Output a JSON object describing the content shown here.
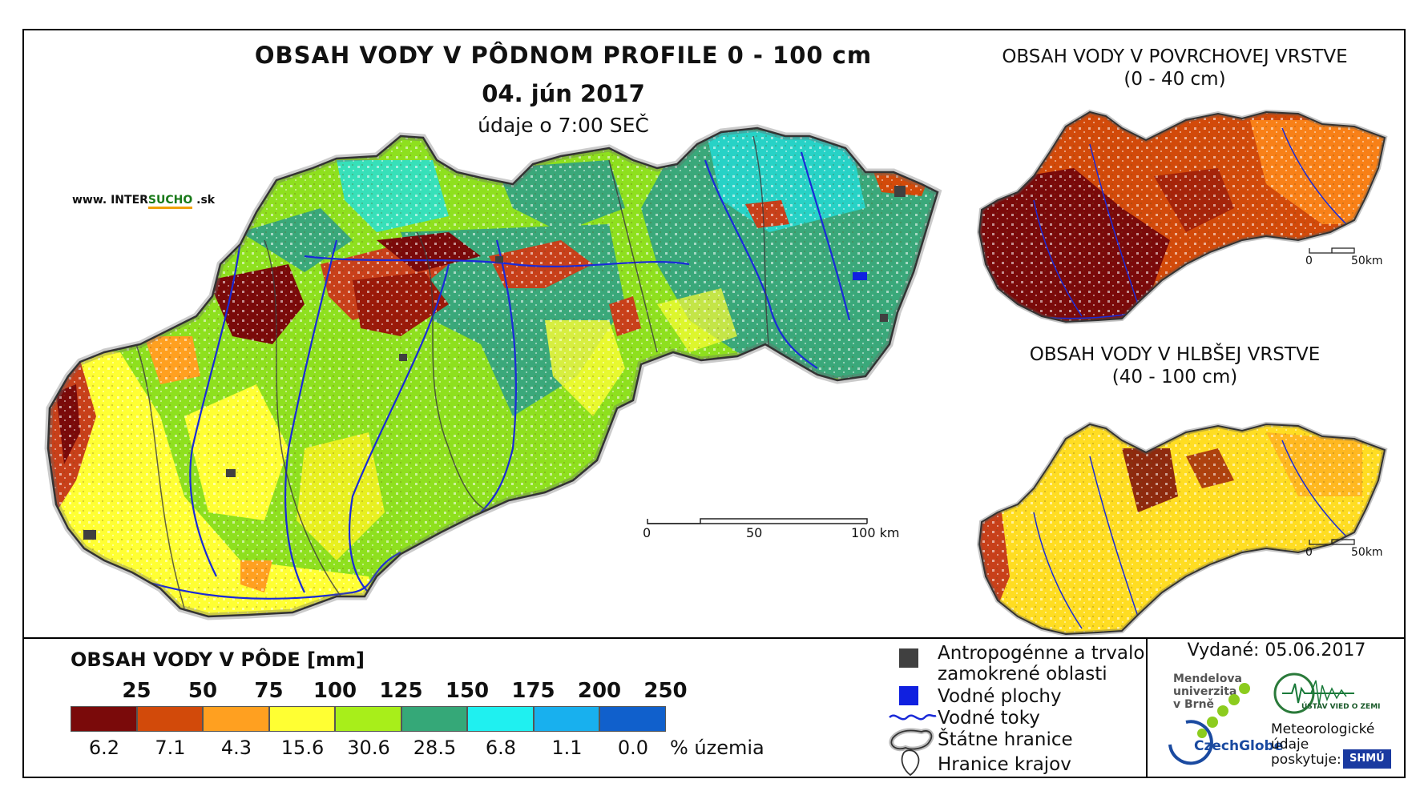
{
  "title": "OBSAH VODY V PÔDNOM PROFILE 0 - 100 cm",
  "date": "04. jún 2017",
  "time_note": "údaje o 7:00 SEČ",
  "website": {
    "prefix": "www. INTER",
    "highlight": "SUCHO",
    "suffix": " .sk"
  },
  "inset_top": {
    "title_line1": "OBSAH VODY V POVRCHOVEJ VRSTVE",
    "title_line2": "(0 - 40 cm)"
  },
  "inset_bottom": {
    "title_line1": "OBSAH VODY V HLBŠEJ VRSTVE",
    "title_line2": "(40 - 100 cm)"
  },
  "scale_main": {
    "labels": [
      "0",
      "50",
      "100 km"
    ]
  },
  "scale_inset": {
    "labels": [
      "0",
      "50km"
    ]
  },
  "legend": {
    "title": "OBSAH VODY V PÔDE [mm]",
    "breaks": [
      "25",
      "50",
      "75",
      "100",
      "125",
      "150",
      "175",
      "200",
      "250"
    ],
    "colors": [
      "#7a0a0a",
      "#d24a0a",
      "#ffa020",
      "#ffff33",
      "#a8ee1a",
      "#35a878",
      "#1ff0f0",
      "#18b0ee",
      "#1060cc"
    ],
    "percentages": [
      "6.2",
      "7.1",
      "4.3",
      "15.6",
      "30.6",
      "28.5",
      "6.8",
      "1.1",
      "0.0"
    ],
    "percent_unit": "% územia"
  },
  "legend_symbols": {
    "anthropogenic_line1": "Antropogénne a trvalo",
    "anthropogenic_line2": "zamokrené oblasti",
    "water_bodies": "Vodné plochy",
    "streams": "Vodné toky",
    "state_border": "Štátne hranice",
    "region_border": "Hranice krajov"
  },
  "issued": "Vydané: 05.06.2017",
  "orgs": {
    "mendel_line1": "Mendelova",
    "mendel_line2": "univerzita",
    "mendel_line3": "v Brně",
    "czechglobe": "CzechGlobe",
    "uvz": "ÚSTAV VIED O ZEMI",
    "meteo_line1": "Meteorologické",
    "meteo_line2": "údaje",
    "meteo_line3": "poskytuje:",
    "shmu": "SHMÚ"
  }
}
